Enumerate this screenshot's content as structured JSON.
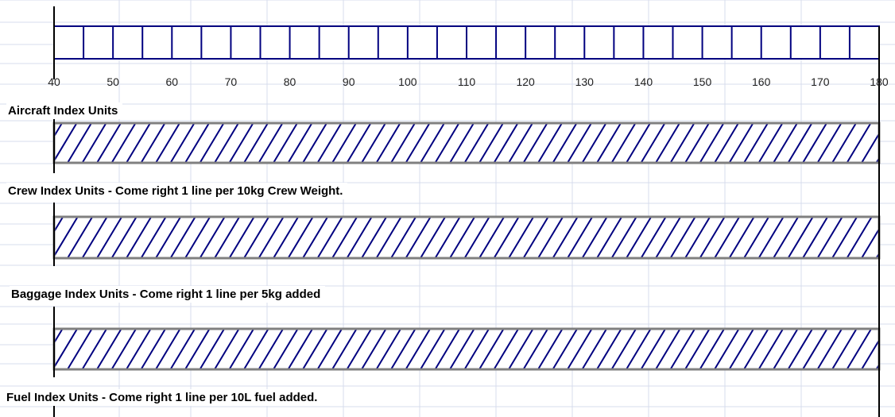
{
  "scale": {
    "min": 40,
    "max": 180,
    "labeled_ticks": [
      40,
      50,
      60,
      70,
      80,
      90,
      100,
      110,
      120,
      130,
      140,
      150,
      160,
      170,
      180
    ],
    "minor_step": 5
  },
  "sections": [
    {
      "id": "aircraft",
      "label": "Aircraft Index Units"
    },
    {
      "id": "crew",
      "label": "Crew Index Units - Come right 1 line per 10kg Crew Weight."
    },
    {
      "id": "baggage",
      "label": "Baggage Index Units - Come right 1 line per 5kg added"
    },
    {
      "id": "fuel",
      "label": "Fuel Index Units - Come right 1 line per 10L fuel added."
    }
  ],
  "colors": {
    "scale_lines": "#000080",
    "hatch": "#000080",
    "bar_border": "#808080",
    "gridlines": "#d7dcec",
    "axis": "#000000"
  }
}
